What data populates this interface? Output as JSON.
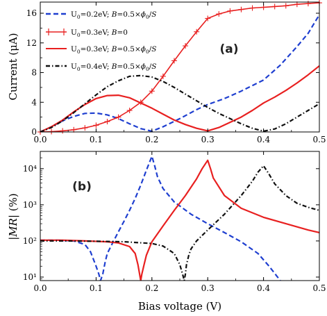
{
  "colors": {
    "blue": "#1f3fd0",
    "red": "#e82020",
    "black": "#111111"
  },
  "chart_data": [
    {
      "type": "line",
      "panel_label": "(a)",
      "xlabel": "",
      "ylabel": "Current (μA)",
      "xlim": [
        0,
        0.5
      ],
      "ylim": [
        0,
        17.5
      ],
      "xticks": [
        0.0,
        0.1,
        0.2,
        0.3,
        0.4,
        0.5
      ],
      "yticks": [
        0,
        4,
        8,
        12,
        16
      ],
      "grid": false,
      "legend_position": "top-left",
      "series": [
        {
          "name": "U0=0.2eV; B=0.5×ϕ0/S",
          "style": "dashed",
          "color": "#1f3fd0",
          "x": [
            0,
            0.02,
            0.04,
            0.06,
            0.08,
            0.1,
            0.12,
            0.14,
            0.16,
            0.18,
            0.2,
            0.22,
            0.25,
            0.28,
            0.3,
            0.33,
            0.36,
            0.4,
            0.43,
            0.46,
            0.48,
            0.5
          ],
          "y": [
            0,
            0.7,
            1.5,
            2.1,
            2.5,
            2.55,
            2.3,
            1.8,
            1.1,
            0.45,
            0.1,
            0.7,
            1.8,
            3.0,
            3.7,
            4.5,
            5.5,
            7.0,
            9.0,
            11.5,
            13.3,
            15.8
          ]
        },
        {
          "name": "U0=0.3eV; B=0",
          "style": "solid-plus",
          "color": "#e82020",
          "x": [
            0,
            0.02,
            0.04,
            0.06,
            0.08,
            0.1,
            0.12,
            0.14,
            0.16,
            0.18,
            0.2,
            0.22,
            0.24,
            0.26,
            0.28,
            0.3,
            0.32,
            0.34,
            0.36,
            0.38,
            0.4,
            0.42,
            0.44,
            0.46,
            0.48,
            0.5
          ],
          "y": [
            0,
            0.05,
            0.15,
            0.3,
            0.55,
            0.9,
            1.4,
            2.0,
            2.9,
            4.0,
            5.5,
            7.5,
            9.6,
            11.6,
            13.5,
            15.3,
            15.9,
            16.3,
            16.5,
            16.7,
            16.8,
            16.9,
            17.0,
            17.2,
            17.3,
            17.4
          ]
        },
        {
          "name": "U0=0.3eV; B=0.5×ϕ0/S",
          "style": "solid",
          "color": "#e82020",
          "x": [
            0,
            0.02,
            0.04,
            0.06,
            0.08,
            0.1,
            0.12,
            0.14,
            0.16,
            0.18,
            0.2,
            0.22,
            0.24,
            0.26,
            0.28,
            0.3,
            0.32,
            0.34,
            0.36,
            0.38,
            0.4,
            0.42,
            0.44,
            0.46,
            0.48,
            0.5
          ],
          "y": [
            0,
            0.7,
            1.6,
            2.7,
            3.7,
            4.5,
            4.9,
            4.95,
            4.6,
            3.9,
            3.2,
            2.4,
            1.6,
            1.0,
            0.5,
            0.15,
            0.6,
            1.3,
            2.0,
            2.9,
            3.9,
            4.7,
            5.6,
            6.6,
            7.7,
            8.9
          ]
        },
        {
          "name": "U0=0.4eV; B=0.5×ϕ0/S",
          "style": "dashdot",
          "color": "#111111",
          "x": [
            0,
            0.02,
            0.04,
            0.06,
            0.08,
            0.1,
            0.12,
            0.14,
            0.16,
            0.18,
            0.2,
            0.22,
            0.24,
            0.26,
            0.28,
            0.3,
            0.32,
            0.34,
            0.36,
            0.38,
            0.4,
            0.42,
            0.44,
            0.46,
            0.48,
            0.5
          ],
          "y": [
            0,
            0.6,
            1.5,
            2.6,
            3.8,
            5.0,
            6.1,
            6.9,
            7.5,
            7.6,
            7.4,
            6.8,
            6.0,
            5.1,
            4.2,
            3.3,
            2.5,
            1.8,
            1.1,
            0.5,
            0.1,
            0.4,
            1.1,
            2.0,
            2.9,
            3.8
          ]
        }
      ]
    },
    {
      "type": "line",
      "panel_label": "(b)",
      "xlabel": "Bias voltage (V)",
      "ylabel": "|MR| (%)",
      "xlim": [
        0,
        0.5
      ],
      "ylim": [
        8,
        30000
      ],
      "yscale": "log",
      "xticks": [
        0.0,
        0.1,
        0.2,
        0.3,
        0.4,
        0.5
      ],
      "yticks": [
        10,
        100,
        1000,
        10000
      ],
      "ytick_labels": [
        "10¹",
        "10²",
        "10³",
        "10⁴"
      ],
      "grid": false,
      "series": [
        {
          "style": "dashed",
          "color": "#1f3fd0",
          "x": [
            0,
            0.03,
            0.06,
            0.08,
            0.09,
            0.1,
            0.105,
            0.108,
            0.112,
            0.116,
            0.12,
            0.13,
            0.14,
            0.15,
            0.16,
            0.17,
            0.18,
            0.19,
            0.2,
            0.205,
            0.21,
            0.22,
            0.24,
            0.27,
            0.3,
            0.33,
            0.36,
            0.39,
            0.41,
            0.43
          ],
          "y": [
            105,
            105,
            100,
            80,
            50,
            20,
            12,
            8,
            12,
            25,
            45,
            90,
            180,
            350,
            700,
            1500,
            3500,
            9000,
            22000,
            12000,
            6000,
            2800,
            1200,
            550,
            300,
            170,
            95,
            45,
            20,
            8
          ]
        },
        {
          "style": "solid",
          "color": "#e82020",
          "x": [
            0,
            0.04,
            0.08,
            0.12,
            0.14,
            0.16,
            0.17,
            0.175,
            0.178,
            0.18,
            0.182,
            0.186,
            0.19,
            0.2,
            0.22,
            0.24,
            0.26,
            0.28,
            0.29,
            0.3,
            0.305,
            0.31,
            0.33,
            0.36,
            0.4,
            0.44,
            0.48,
            0.5
          ],
          "y": [
            105,
            105,
            100,
            95,
            88,
            70,
            45,
            22,
            12,
            8,
            12,
            22,
            40,
            95,
            260,
            700,
            1800,
            5200,
            10000,
            17000,
            10000,
            5500,
            1800,
            800,
            450,
            300,
            200,
            170
          ]
        },
        {
          "style": "dashdot",
          "color": "#111111",
          "x": [
            0,
            0.05,
            0.1,
            0.15,
            0.2,
            0.22,
            0.24,
            0.25,
            0.255,
            0.258,
            0.26,
            0.262,
            0.266,
            0.27,
            0.28,
            0.3,
            0.33,
            0.36,
            0.38,
            0.39,
            0.4,
            0.41,
            0.42,
            0.44,
            0.46,
            0.48,
            0.5
          ],
          "y": [
            100,
            100,
            98,
            95,
            85,
            72,
            45,
            22,
            12,
            8,
            12,
            22,
            40,
            60,
            100,
            200,
            550,
            1800,
            4500,
            8000,
            12000,
            7000,
            3800,
            1800,
            1100,
            850,
            700
          ]
        }
      ]
    }
  ]
}
